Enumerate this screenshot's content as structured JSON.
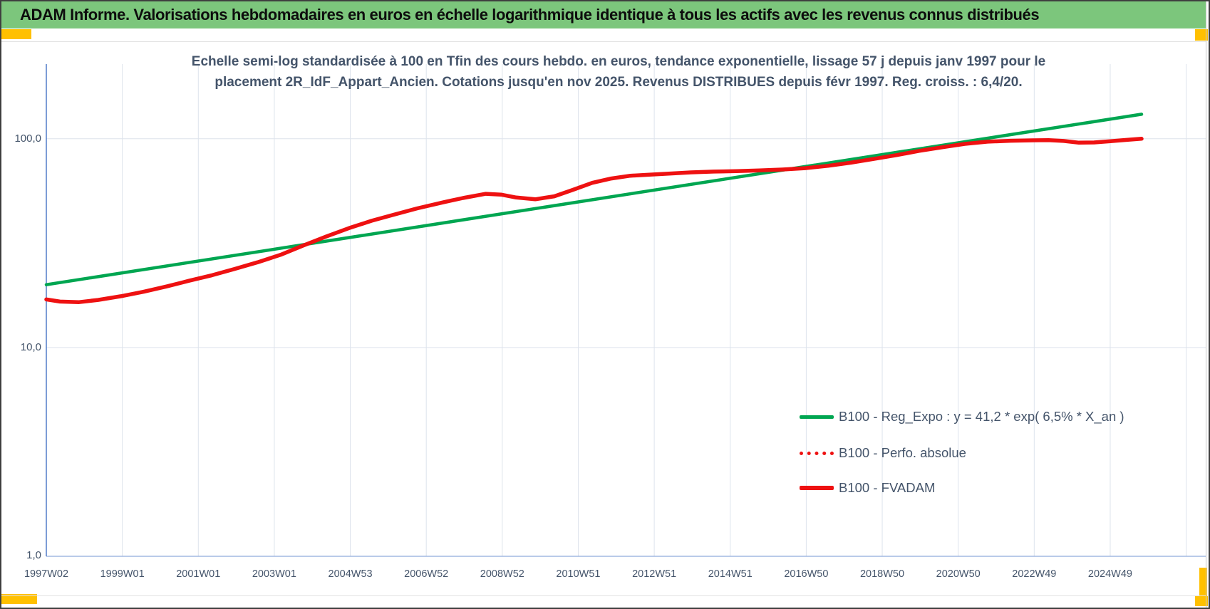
{
  "banner": {
    "title": "ADAM Informe. Valorisations hebdomadaires en euros en échelle logarithmique identique à tous les actifs avec les revenus connus distribués"
  },
  "chart": {
    "title_line1": "Echelle semi-log standardisée à 100 en Tfin des cours hebdo. en euros, tendance exponentielle, lissage 57 j depuis janv 1997 pour le",
    "title_line2": "placement 2R_IdF_Appart_Ancien. Cotations jusqu'en nov 2025. Revenus DISTRIBUES depuis févr 1997. Reg. croiss. : 6,4/20."
  },
  "legend": {
    "items": [
      {
        "label": "B100 - Reg_Expo : y = 41,2 * exp( 6,5% *  X_an )",
        "style": "green-solid"
      },
      {
        "label": "B100 - Perfo. absolue",
        "style": "red-dotted"
      },
      {
        "label": "B100 - FVADAM",
        "style": "red-solid"
      }
    ]
  },
  "colors": {
    "banner_green": "#7cc67c",
    "accent_yellow": "#ffc000",
    "text_slate": "#44546a",
    "series_green": "#00a651",
    "series_red": "#ee1111",
    "gridline": "#dde3ec",
    "axis_blue": "#4472c4",
    "axis_bottom": "#8faadc"
  },
  "chart_data": {
    "type": "line",
    "y_scale": "log10",
    "grid": true,
    "legend_position": "inside-right",
    "y_axis": {
      "tick_labels": [
        "100,0",
        "10,0",
        "1,0"
      ],
      "tick_values": [
        100,
        10,
        1
      ],
      "range_shown": [
        1,
        230
      ]
    },
    "x_axis": {
      "tick_labels": [
        "1997W02",
        "1999W01",
        "2001W01",
        "2003W01",
        "2004W53",
        "2006W52",
        "2008W52",
        "2010W51",
        "2012W51",
        "2014W51",
        "2016W50",
        "2018W50",
        "2020W50",
        "2022W49",
        "2024W49"
      ],
      "start_year_decimal": 1997.04,
      "end_year_decimal": 2025.85,
      "tick_interval_years": 2
    },
    "series": [
      {
        "name": "B100 - Reg_Expo : y = 41,2 * exp( 6,5% *  X_an )",
        "color": "#00a651",
        "style": "solid",
        "note": "exponential regression, straight on log scale",
        "points": [
          [
            1997.04,
            20.0
          ],
          [
            2025.85,
            131.0
          ]
        ]
      },
      {
        "name": "B100 - Perfo. absolue",
        "color": "#ee1111",
        "style": "dotted",
        "coincides_with": "B100 - FVADAM",
        "points": []
      },
      {
        "name": "B100 - FVADAM",
        "color": "#ee1111",
        "style": "solid",
        "points": [
          [
            1997.04,
            17.0
          ],
          [
            1997.4,
            16.6
          ],
          [
            1997.9,
            16.5
          ],
          [
            1998.4,
            16.9
          ],
          [
            1999.0,
            17.6
          ],
          [
            1999.6,
            18.5
          ],
          [
            2000.2,
            19.6
          ],
          [
            2000.8,
            20.9
          ],
          [
            2001.4,
            22.2
          ],
          [
            2002.0,
            23.8
          ],
          [
            2002.6,
            25.6
          ],
          [
            2003.2,
            27.8
          ],
          [
            2003.8,
            30.8
          ],
          [
            2004.4,
            34.0
          ],
          [
            2005.0,
            37.3
          ],
          [
            2005.6,
            40.5
          ],
          [
            2006.2,
            43.4
          ],
          [
            2006.8,
            46.4
          ],
          [
            2007.5,
            49.7
          ],
          [
            2008.0,
            52.0
          ],
          [
            2008.6,
            54.5
          ],
          [
            2009.0,
            54.0
          ],
          [
            2009.4,
            52.3
          ],
          [
            2009.9,
            51.3
          ],
          [
            2010.4,
            53.0
          ],
          [
            2010.9,
            57.0
          ],
          [
            2011.4,
            61.5
          ],
          [
            2011.9,
            64.5
          ],
          [
            2012.4,
            66.5
          ],
          [
            2012.9,
            67.3
          ],
          [
            2013.5,
            68.2
          ],
          [
            2014.0,
            69.0
          ],
          [
            2014.6,
            69.6
          ],
          [
            2015.2,
            70.0
          ],
          [
            2015.8,
            70.5
          ],
          [
            2016.4,
            71.2
          ],
          [
            2017.0,
            72.3
          ],
          [
            2017.6,
            74.2
          ],
          [
            2018.2,
            76.8
          ],
          [
            2018.8,
            80.0
          ],
          [
            2019.4,
            83.5
          ],
          [
            2020.0,
            87.5
          ],
          [
            2020.6,
            91.0
          ],
          [
            2021.2,
            94.5
          ],
          [
            2021.8,
            96.8
          ],
          [
            2022.4,
            97.8
          ],
          [
            2023.0,
            98.3
          ],
          [
            2023.4,
            98.5
          ],
          [
            2023.8,
            97.6
          ],
          [
            2024.2,
            95.8
          ],
          [
            2024.6,
            96.0
          ],
          [
            2025.0,
            97.2
          ],
          [
            2025.4,
            98.6
          ],
          [
            2025.85,
            100.0
          ]
        ]
      }
    ]
  }
}
